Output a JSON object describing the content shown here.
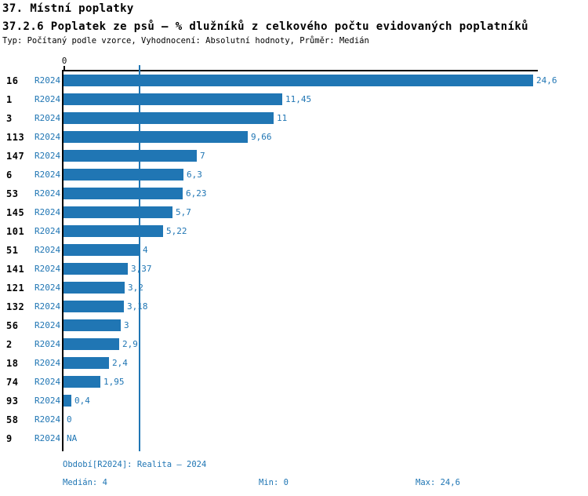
{
  "header": {
    "title": "37. Místní poplatky",
    "subtitle": "37.2.6 Poplatek ze psů – % dlužníků z celkového počtu evidovaných poplatníků",
    "meta": "Typ: Počítaný podle vzorce, Vyhodnocení: Absolutní hodnoty, Průměr: Medián"
  },
  "colors": {
    "accent": "#2076b4",
    "bar": "#2076b4",
    "axis": "#000000",
    "text": "#000000"
  },
  "chart_data": {
    "type": "bar",
    "orientation": "horizontal",
    "series_name": "R2024",
    "title": "37.2.6 Poplatek ze psů – % dlužníků z celkového počtu evidovaných poplatníků",
    "x_axis": {
      "ticks": [
        "0"
      ],
      "xlim": [
        0,
        24.6
      ],
      "grid": false
    },
    "median_line_value": 4,
    "rows": [
      {
        "id": "16",
        "period": "R2024",
        "value": 24.6,
        "label": "24,6"
      },
      {
        "id": "1",
        "period": "R2024",
        "value": 11.45,
        "label": "11,45"
      },
      {
        "id": "3",
        "period": "R2024",
        "value": 11,
        "label": "11"
      },
      {
        "id": "113",
        "period": "R2024",
        "value": 9.66,
        "label": "9,66"
      },
      {
        "id": "147",
        "period": "R2024",
        "value": 7,
        "label": "7"
      },
      {
        "id": "6",
        "period": "R2024",
        "value": 6.3,
        "label": "6,3"
      },
      {
        "id": "53",
        "period": "R2024",
        "value": 6.23,
        "label": "6,23"
      },
      {
        "id": "145",
        "period": "R2024",
        "value": 5.7,
        "label": "5,7"
      },
      {
        "id": "101",
        "period": "R2024",
        "value": 5.22,
        "label": "5,22"
      },
      {
        "id": "51",
        "period": "R2024",
        "value": 4,
        "label": "4"
      },
      {
        "id": "141",
        "period": "R2024",
        "value": 3.37,
        "label": "3,37"
      },
      {
        "id": "121",
        "period": "R2024",
        "value": 3.2,
        "label": "3,2"
      },
      {
        "id": "132",
        "period": "R2024",
        "value": 3.18,
        "label": "3,18"
      },
      {
        "id": "56",
        "period": "R2024",
        "value": 3,
        "label": "3"
      },
      {
        "id": "2",
        "period": "R2024",
        "value": 2.9,
        "label": "2,9"
      },
      {
        "id": "18",
        "period": "R2024",
        "value": 2.4,
        "label": "2,4"
      },
      {
        "id": "74",
        "period": "R2024",
        "value": 1.95,
        "label": "1,95"
      },
      {
        "id": "93",
        "period": "R2024",
        "value": 0.4,
        "label": "0,4"
      },
      {
        "id": "58",
        "period": "R2024",
        "value": 0,
        "label": "0"
      },
      {
        "id": "9",
        "period": "R2024",
        "value": null,
        "label": "NA"
      }
    ],
    "footer": {
      "period_note": "Období[R2024]: Realita – 2024",
      "median": "Medián: 4",
      "min": "Min: 0",
      "max": "Max: 24,6"
    }
  }
}
